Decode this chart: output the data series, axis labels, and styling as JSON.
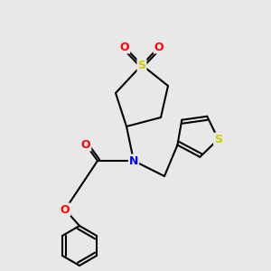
{
  "bg_color": "#e8e8e8",
  "bond_color": "#000000",
  "bond_width": 1.5,
  "atom_colors": {
    "S_yellow": "#cccc00",
    "N": "#0000ff",
    "O": "#ff0000"
  },
  "font_size": 8,
  "figsize": [
    3.0,
    3.0
  ],
  "dpi": 100
}
